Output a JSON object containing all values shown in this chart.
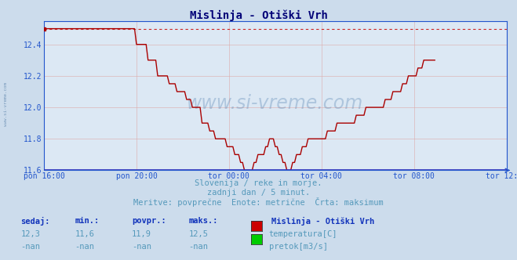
{
  "title": "Mislinja - Otiški Vrh",
  "bg_color": "#ccdcec",
  "plot_bg_color": "#dce8f4",
  "line_color": "#aa0000",
  "dashed_line_color": "#cc2222",
  "axis_color": "#2255cc",
  "grid_color": "#ddaaaa",
  "text_color": "#5599bb",
  "label_color": "#2244aa",
  "ylim": [
    11.6,
    12.55
  ],
  "yticks": [
    11.6,
    11.8,
    12.0,
    12.2,
    12.4
  ],
  "xtick_labels": [
    "pon 16:00",
    "pon 20:00",
    "tor 00:00",
    "tor 04:00",
    "tor 08:00",
    "tor 12:00"
  ],
  "max_value": 12.5,
  "subtitle1": "Slovenija / reke in morje.",
  "subtitle2": "zadnji dan / 5 minut.",
  "subtitle3": "Meritve: povprečne  Enote: metrične  Črta: maksimum",
  "footer_headers": [
    "sedaj:",
    "min.:",
    "povpr.:",
    "maks.:"
  ],
  "footer_values_row1": [
    "12,3",
    "11,6",
    "11,9",
    "12,5"
  ],
  "footer_values_row2": [
    "-nan",
    "-nan",
    "-nan",
    "-nan"
  ],
  "legend_title": "Mislinja - Otiški Vrh",
  "legend_items": [
    "temperatura[C]",
    "pretok[m3/s]"
  ],
  "legend_colors": [
    "#cc0000",
    "#00cc00"
  ],
  "n_points": 289,
  "temp_data": [
    12.5,
    12.5,
    12.5,
    12.5,
    12.5,
    12.5,
    12.5,
    12.5,
    12.5,
    12.5,
    12.5,
    12.5,
    12.5,
    12.5,
    12.5,
    12.5,
    12.5,
    12.5,
    12.5,
    12.5,
    12.5,
    12.5,
    12.5,
    12.5,
    12.5,
    12.5,
    12.5,
    12.5,
    12.5,
    12.5,
    12.5,
    12.5,
    12.5,
    12.5,
    12.5,
    12.5,
    12.5,
    12.5,
    12.5,
    12.5,
    12.5,
    12.5,
    12.5,
    12.5,
    12.5,
    12.5,
    12.5,
    12.5,
    12.4,
    12.4,
    12.4,
    12.4,
    12.4,
    12.4,
    12.3,
    12.3,
    12.3,
    12.3,
    12.3,
    12.2,
    12.2,
    12.2,
    12.2,
    12.2,
    12.2,
    12.15,
    12.15,
    12.15,
    12.15,
    12.1,
    12.1,
    12.1,
    12.1,
    12.1,
    12.05,
    12.05,
    12.05,
    12.0,
    12.0,
    12.0,
    12.0,
    12.0,
    11.9,
    11.9,
    11.9,
    11.9,
    11.85,
    11.85,
    11.85,
    11.8,
    11.8,
    11.8,
    11.8,
    11.8,
    11.8,
    11.75,
    11.75,
    11.75,
    11.75,
    11.7,
    11.7,
    11.7,
    11.65,
    11.65,
    11.6,
    11.6,
    11.6,
    11.6,
    11.6,
    11.65,
    11.65,
    11.7,
    11.7,
    11.7,
    11.7,
    11.75,
    11.75,
    11.8,
    11.8,
    11.8,
    11.75,
    11.75,
    11.7,
    11.7,
    11.65,
    11.65,
    11.6,
    11.6,
    11.6,
    11.65,
    11.65,
    11.7,
    11.7,
    11.7,
    11.75,
    11.75,
    11.75,
    11.8,
    11.8,
    11.8,
    11.8,
    11.8,
    11.8,
    11.8,
    11.8,
    11.8,
    11.8,
    11.85,
    11.85,
    11.85,
    11.85,
    11.85,
    11.9,
    11.9,
    11.9,
    11.9,
    11.9,
    11.9,
    11.9,
    11.9,
    11.9,
    11.9,
    11.95,
    11.95,
    11.95,
    11.95,
    11.95,
    12.0,
    12.0,
    12.0,
    12.0,
    12.0,
    12.0,
    12.0,
    12.0,
    12.0,
    12.0,
    12.05,
    12.05,
    12.05,
    12.05,
    12.1,
    12.1,
    12.1,
    12.1,
    12.1,
    12.15,
    12.15,
    12.15,
    12.2,
    12.2,
    12.2,
    12.2,
    12.2,
    12.25,
    12.25,
    12.25,
    12.3,
    12.3,
    12.3,
    12.3,
    12.3,
    12.3,
    12.3
  ]
}
